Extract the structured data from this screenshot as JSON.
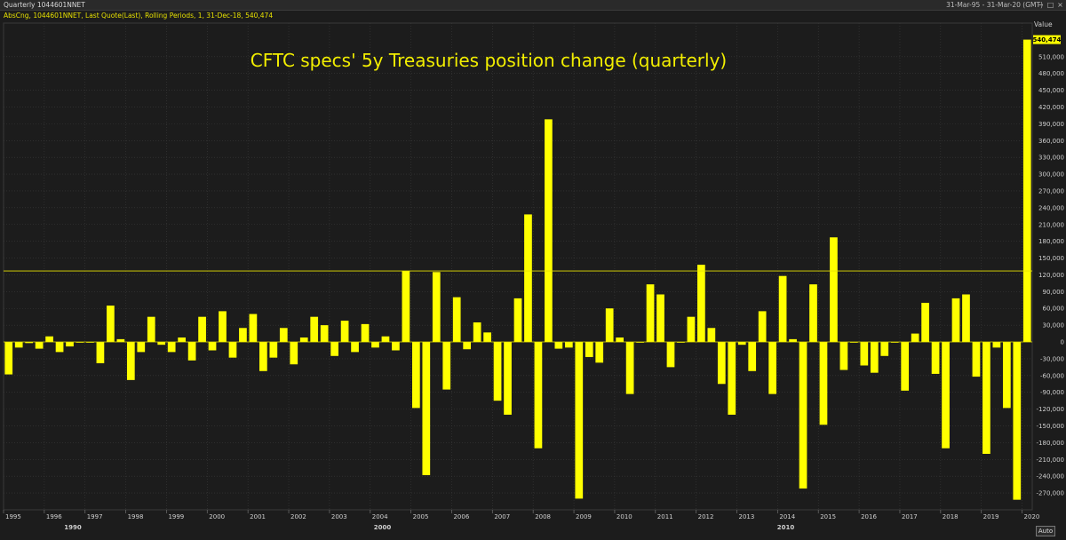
{
  "window": {
    "title": "Quarterly 1044601NNET",
    "range": "31-Mar-95 - 31-Mar-20 (GMT)",
    "controls": [
      "−",
      "□",
      "×"
    ]
  },
  "series_info": "AbsCng, 1044601NNET, Last Quote(Last), Rolling Periods, 1, 31-Dec-18, 540,474",
  "value_header": "Value",
  "auto_button": "Auto",
  "colors": {
    "bar": "#ffff00",
    "reference_line": "#e6e000",
    "grid": "#3a3a3a",
    "background": "#1c1c1c"
  },
  "chart_data": {
    "type": "bar",
    "title": "CFTC specs' 5y Treasuries position change (quarterly)",
    "xlabel": "",
    "ylabel": "Value",
    "x_start": "1995 Q1",
    "x_end": "2020 Q1",
    "ylim": [
      -300000,
      570000
    ],
    "y_ticks": [
      -270000,
      -240000,
      -210000,
      -180000,
      -150000,
      -120000,
      -90000,
      -60000,
      -30000,
      0,
      30000,
      60000,
      90000,
      120000,
      150000,
      180000,
      210000,
      240000,
      270000,
      300000,
      330000,
      360000,
      390000,
      420000,
      450000,
      480000,
      510000
    ],
    "y_tick_labels": [
      "-270,000",
      "-240,000",
      "-210,000",
      "-180,000",
      "-150,000",
      "-120,000",
      "-90,000",
      "-60,000",
      "-30,000",
      "0",
      "30,000",
      "60,000",
      "90,000",
      "120,000",
      "150,000",
      "180,000",
      "210,000",
      "240,000",
      "270,000",
      "300,000",
      "330,000",
      "360,000",
      "390,000",
      "420,000",
      "450,000",
      "480,000",
      "510,000"
    ],
    "x_tick_labels": [
      "1995",
      "1996",
      "1997",
      "1998",
      "1999",
      "2000",
      "2001",
      "2002",
      "2003",
      "2004",
      "2005",
      "2006",
      "2007",
      "2008",
      "2009",
      "2010",
      "2011",
      "2012",
      "2013",
      "2014",
      "2015",
      "2016",
      "2017",
      "2018",
      "2019",
      "2020"
    ],
    "decade_labels": [
      "1990",
      "2000",
      "2010"
    ],
    "last_value_label": "540,474",
    "reference_line_value": 127000,
    "zero_line": 0,
    "values": [
      -58000,
      -10000,
      -2000,
      -12000,
      10000,
      -18000,
      -8000,
      0,
      0,
      -38000,
      65000,
      5000,
      -68000,
      -18000,
      45000,
      -5000,
      -18000,
      8000,
      -33000,
      45000,
      -15000,
      55000,
      -28000,
      25000,
      50000,
      -52000,
      -28000,
      25000,
      -40000,
      8000,
      45000,
      30000,
      -25000,
      38000,
      -18000,
      32000,
      -10000,
      10000,
      -15000,
      127000,
      -118000,
      -238000,
      125000,
      -85000,
      80000,
      -13000,
      35000,
      17000,
      -105000,
      -130000,
      78000,
      228000,
      -190000,
      398000,
      -12000,
      -10000,
      -280000,
      -27000,
      -37000,
      60000,
      8000,
      -93000,
      0,
      103000,
      85000,
      -45000,
      0,
      45000,
      138000,
      25000,
      -75000,
      -130000,
      -5000,
      -52000,
      55000,
      -93000,
      118000,
      5000,
      -262000,
      103000,
      -148000,
      187000,
      -50000,
      0,
      -42000,
      -55000,
      -25000,
      0,
      -87000,
      15000,
      70000,
      -57000,
      -190000,
      78000,
      85000,
      -62000,
      -200000,
      -10000,
      -118000,
      -282000,
      540474
    ]
  }
}
